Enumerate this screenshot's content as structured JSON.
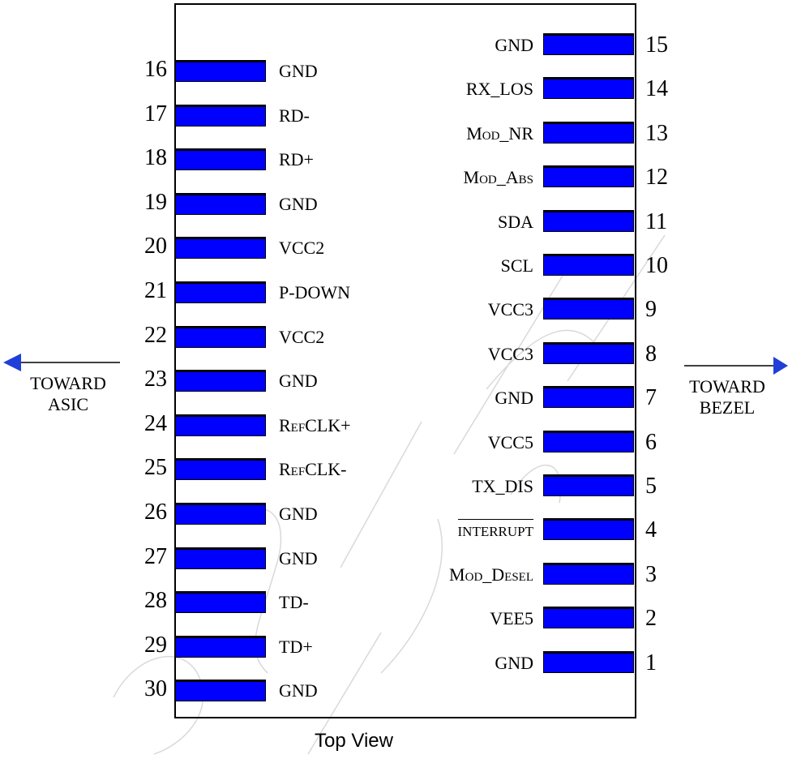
{
  "title": "Top View",
  "left_direction": {
    "line1": "TOWARD",
    "line2": "ASIC",
    "arrow_color": "#1f3fd8"
  },
  "right_direction": {
    "line1": "TOWARD",
    "line2": "BEZEL",
    "arrow_color": "#1f3fd8"
  },
  "pin_color": "#0000ff",
  "left_pins": [
    {
      "number": "16",
      "label": "GND",
      "small_caps": true
    },
    {
      "number": "17",
      "label": "RD-",
      "small_caps": false
    },
    {
      "number": "18",
      "label": "RD+",
      "small_caps": false
    },
    {
      "number": "19",
      "label": "GND",
      "small_caps": true
    },
    {
      "number": "20",
      "label": "VCC2",
      "small_caps": false
    },
    {
      "number": "21",
      "label": "P-DOWN",
      "small_caps": false
    },
    {
      "number": "22",
      "label": "VCC2",
      "small_caps": false
    },
    {
      "number": "23",
      "label": "GND",
      "small_caps": true
    },
    {
      "number": "24",
      "label": "RefCLK+",
      "small_caps": true
    },
    {
      "number": "25",
      "label": "RefCLK-",
      "small_caps": true
    },
    {
      "number": "26",
      "label": "GND",
      "small_caps": true
    },
    {
      "number": "27",
      "label": "GND",
      "small_caps": true
    },
    {
      "number": "28",
      "label": "TD-",
      "small_caps": false
    },
    {
      "number": "29",
      "label": "TD+",
      "small_caps": false
    },
    {
      "number": "30",
      "label": "GND",
      "small_caps": true
    }
  ],
  "right_pins": [
    {
      "number": "15",
      "label": "GND",
      "small_caps": true
    },
    {
      "number": "14",
      "label": "RX_LOS",
      "small_caps": false
    },
    {
      "number": "13",
      "label": "Mod_NR",
      "small_caps": true
    },
    {
      "number": "12",
      "label": "Mod_Abs",
      "small_caps": true
    },
    {
      "number": "11",
      "label": "SDA",
      "small_caps": false
    },
    {
      "number": "10",
      "label": "SCL",
      "small_caps": false
    },
    {
      "number": "9",
      "label": "VCC3",
      "small_caps": false
    },
    {
      "number": "8",
      "label": "VCC3",
      "small_caps": false
    },
    {
      "number": "7",
      "label": "GND",
      "small_caps": true
    },
    {
      "number": "6",
      "label": "VCC5",
      "small_caps": false
    },
    {
      "number": "5",
      "label": "TX_DIS",
      "small_caps": false
    },
    {
      "number": "4",
      "label": "INTERRUPT",
      "small_caps": false,
      "overbar": true
    },
    {
      "number": "3",
      "label": "Mod_Desel",
      "small_caps": true
    },
    {
      "number": "2",
      "label": "VEE5",
      "small_caps": false
    },
    {
      "number": "1",
      "label": "GND",
      "small_caps": true
    }
  ]
}
